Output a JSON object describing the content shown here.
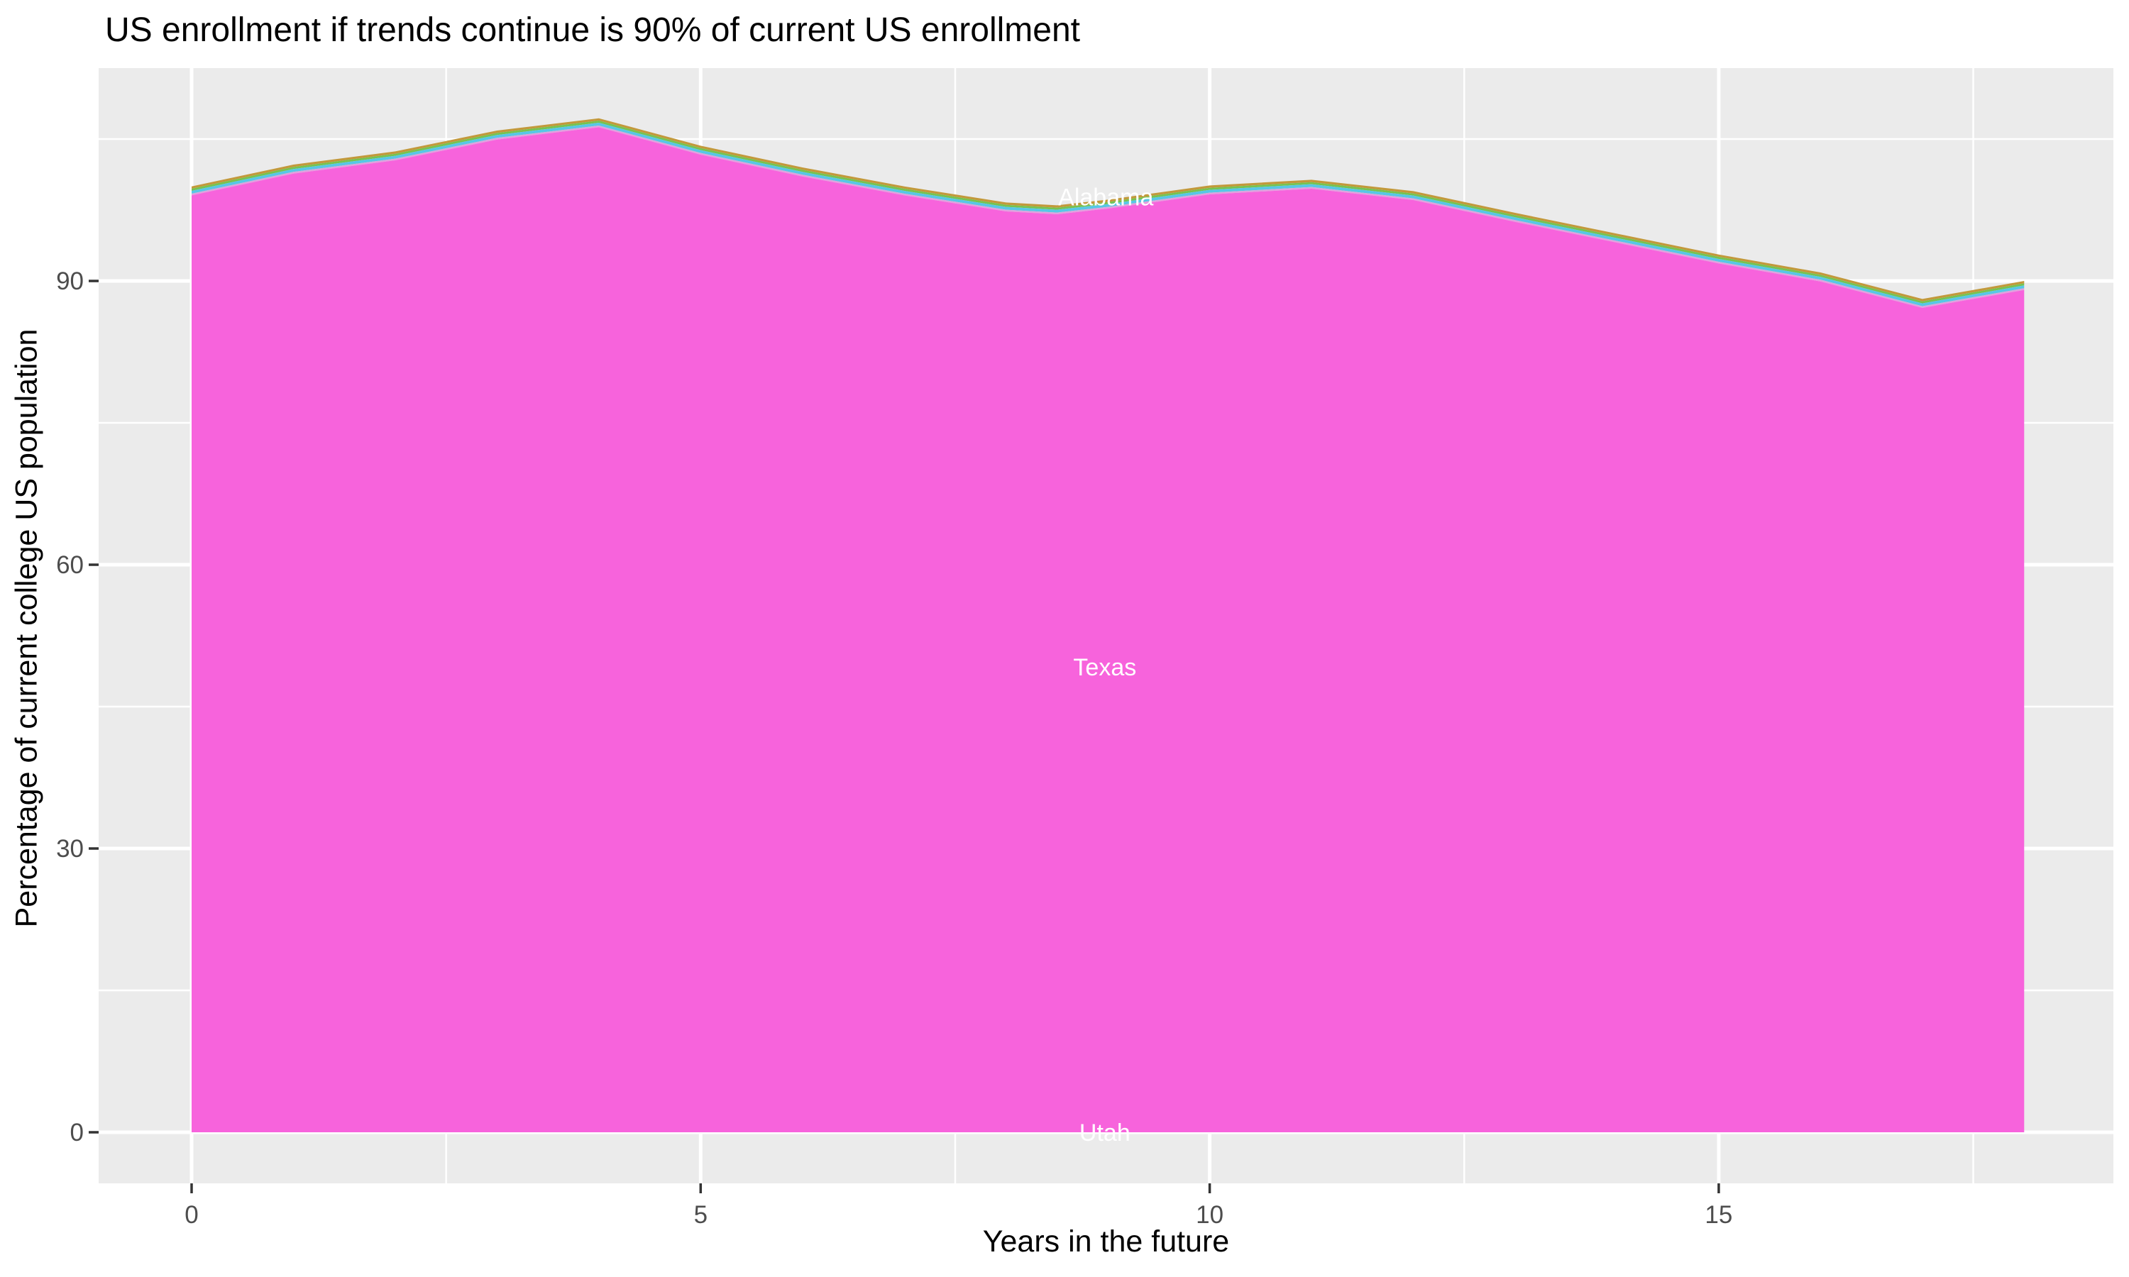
{
  "title": "US enrollment if trends continue is 90% of current US enrollment",
  "x_axis": {
    "title": "Years in the future",
    "tick_labels": [
      "0",
      "5",
      "10",
      "15"
    ],
    "ticks": [
      0,
      5,
      10,
      15
    ],
    "minor_ticks": [
      2.5,
      7.5,
      12.5,
      17.5
    ],
    "domain": [
      -0.913,
      18.87
    ]
  },
  "y_axis": {
    "title": "Percentage of current college US population",
    "tick_labels": [
      "0",
      "30",
      "60",
      "90"
    ],
    "ticks": [
      0,
      30,
      60,
      90
    ],
    "minor_ticks": [
      15,
      45,
      75,
      105
    ],
    "domain": [
      -5.4,
      112.5
    ]
  },
  "chart_data": {
    "type": "area",
    "stacked": true,
    "x": [
      0,
      1,
      2,
      3,
      4,
      5,
      6,
      7,
      8,
      8.5,
      9,
      10,
      11,
      12,
      13,
      14,
      15,
      16,
      17,
      18
    ],
    "stack_top_total": [
      100.0,
      102.3,
      103.7,
      105.9,
      107.2,
      104.3,
      102.0,
      100.0,
      98.3,
      98.0,
      98.6,
      100.1,
      100.7,
      99.5,
      97.2,
      95.0,
      92.8,
      90.9,
      88.1,
      90.0
    ],
    "bands_top_to_bottom": [
      {
        "label": "",
        "color": "#C2993B",
        "thickness": 0.25,
        "note": "thin sliver state band"
      },
      {
        "label": "",
        "color": "#76C250",
        "thickness": 0.22,
        "note": "thin sliver state band"
      },
      {
        "label": "Alabama",
        "color": "#57C7E5",
        "thickness": 0.3,
        "note": "thin sliver state band"
      },
      {
        "label": "",
        "color": "#E0A1DE",
        "thickness": 0.18,
        "note": "thin sliver state band"
      },
      {
        "label": "Texas",
        "color": "#F763DC",
        "thickness": "remainder down to 0",
        "note": "dominant band filling the stack"
      },
      {
        "label": "Utah",
        "color": "#F763DC",
        "thickness": 0,
        "note": "near-zero band at baseline"
      }
    ],
    "area_labels": [
      {
        "text": "Alabama",
        "x": 8.98,
        "y": 98.9,
        "color": "#FFFFFF"
      },
      {
        "text": "Texas",
        "x": 8.97,
        "y": 49.2,
        "color": "#FFFFFF"
      },
      {
        "text": "Utah",
        "x": 8.97,
        "y": 0.0,
        "color": "#FFFFFF"
      }
    ],
    "colors": {
      "panel_background": "#EBEBEB",
      "gridline": "#FFFFFF",
      "tick_mark": "#333333",
      "tick_label": "#4D4D4D",
      "area_main": "#F763DC"
    }
  }
}
